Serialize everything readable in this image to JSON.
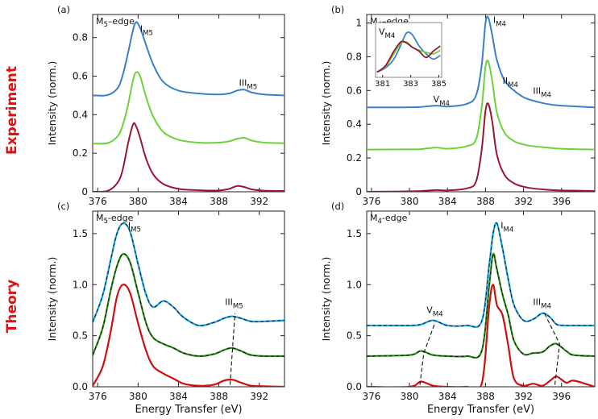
{
  "row_labels": {
    "experiment": "Experiment",
    "theory": "Theory"
  },
  "colors": {
    "blue": "#3a80c8",
    "green": "#6fd13a",
    "darkred": "#9a1532",
    "theory_blue": "#1aa3e8",
    "theory_green": "#2a8a1a",
    "theory_red": "#cc1010"
  },
  "chart_data": [
    {
      "id": "a",
      "type": "line",
      "panel_label": "(a)",
      "edge_label": "M5–edge",
      "ylabel": "Intensity (norm.)",
      "xlabel": "",
      "xlim": [
        375.5,
        394.5
      ],
      "ylim": [
        0,
        0.92
      ],
      "xticks": [
        376,
        380,
        384,
        388,
        392
      ],
      "yticks": [
        0,
        0.2,
        0.4,
        0.6,
        0.8
      ],
      "x": [
        375.5,
        377,
        378,
        378.5,
        379,
        379.5,
        379.8,
        380.2,
        380.8,
        381.5,
        382.5,
        384,
        386,
        388,
        389,
        389.8,
        390.5,
        391.3,
        392.5,
        394.5
      ],
      "series": [
        {
          "color": "blue",
          "values": [
            0.5,
            0.502,
            0.54,
            0.61,
            0.72,
            0.84,
            0.88,
            0.85,
            0.76,
            0.66,
            0.57,
            0.525,
            0.51,
            0.505,
            0.51,
            0.525,
            0.53,
            0.515,
            0.505,
            0.5
          ]
        },
        {
          "color": "green",
          "values": [
            0.25,
            0.253,
            0.29,
            0.35,
            0.45,
            0.58,
            0.62,
            0.6,
            0.49,
            0.39,
            0.31,
            0.27,
            0.255,
            0.255,
            0.262,
            0.275,
            0.28,
            0.265,
            0.255,
            0.252
          ]
        },
        {
          "color": "darkred",
          "values": [
            0.0,
            0.005,
            0.05,
            0.12,
            0.25,
            0.35,
            0.34,
            0.28,
            0.17,
            0.09,
            0.04,
            0.015,
            0.008,
            0.007,
            0.015,
            0.03,
            0.025,
            0.012,
            0.006,
            0.004
          ]
        }
      ],
      "annotations": [
        {
          "label": "I",
          "sub": "M5",
          "x": 380.2,
          "y": 0.83
        },
        {
          "label": "III",
          "sub": "M5",
          "x": 390.0,
          "y": 0.55
        }
      ]
    },
    {
      "id": "b",
      "type": "line",
      "panel_label": "(b)",
      "edge_label": "M4–edge",
      "ylabel": "Intensity (norm.)",
      "xlabel": "",
      "xlim": [
        375.5,
        399.5
      ],
      "ylim": [
        0,
        1.05
      ],
      "xticks": [
        376,
        380,
        384,
        388,
        392,
        396
      ],
      "yticks": [
        0,
        0.2,
        0.4,
        0.6,
        0.8,
        1
      ],
      "x": [
        375.5,
        379,
        381,
        382.8,
        384,
        386,
        387,
        387.6,
        388,
        388.3,
        388.7,
        389.2,
        390,
        391,
        392,
        393,
        394.5,
        396,
        399.5
      ],
      "series": [
        {
          "color": "blue",
          "values": [
            0.5,
            0.5,
            0.502,
            0.51,
            0.505,
            0.52,
            0.57,
            0.75,
            1.0,
            1.03,
            0.93,
            0.78,
            0.66,
            0.6,
            0.56,
            0.54,
            0.52,
            0.51,
            0.5
          ]
        },
        {
          "color": "green",
          "values": [
            0.25,
            0.251,
            0.252,
            0.262,
            0.255,
            0.27,
            0.31,
            0.5,
            0.74,
            0.77,
            0.66,
            0.47,
            0.35,
            0.3,
            0.28,
            0.27,
            0.262,
            0.255,
            0.25
          ]
        },
        {
          "color": "darkred",
          "values": [
            0.0,
            0.002,
            0.004,
            0.01,
            0.008,
            0.02,
            0.06,
            0.25,
            0.48,
            0.52,
            0.42,
            0.22,
            0.1,
            0.05,
            0.03,
            0.02,
            0.012,
            0.008,
            0.005
          ]
        }
      ],
      "annotations": [
        {
          "label": "I",
          "sub": "M4",
          "x": 388.8,
          "y": 1.0
        },
        {
          "label": "II",
          "sub": "M4",
          "x": 389.8,
          "y": 0.64
        },
        {
          "label": "III",
          "sub": "M4",
          "x": 393.0,
          "y": 0.58
        },
        {
          "label": "V",
          "sub": "M4",
          "x": 382.5,
          "y": 0.53
        }
      ],
      "inset": {
        "xlim": [
          380.5,
          385.2
        ],
        "ylim": [
          0,
          1.05
        ],
        "xticks": [
          381,
          383,
          385
        ],
        "label": "V",
        "sub": "M4",
        "x": [
          380.6,
          381.2,
          381.8,
          382.3,
          382.7,
          383.1,
          383.6,
          384.1,
          384.6,
          385.1
        ],
        "series": [
          {
            "color": "blue",
            "values": [
              0.1,
              0.18,
              0.35,
              0.62,
              0.85,
              0.82,
              0.6,
              0.45,
              0.35,
              0.42
            ]
          },
          {
            "color": "green",
            "values": [
              0.1,
              0.2,
              0.45,
              0.65,
              0.68,
              0.58,
              0.52,
              0.48,
              0.45,
              0.52
            ]
          },
          {
            "color": "darkred",
            "values": [
              0.1,
              0.22,
              0.5,
              0.68,
              0.66,
              0.58,
              0.5,
              0.38,
              0.5,
              0.6
            ]
          }
        ]
      }
    },
    {
      "id": "c",
      "type": "line",
      "panel_label": "(c)",
      "edge_label": "M5-edge",
      "ylabel": "Intensity (norm.)",
      "xlabel": "Energy Transfer (eV)",
      "xlim": [
        375.5,
        394.5
      ],
      "ylim": [
        0,
        1.72
      ],
      "xticks": [
        376,
        380,
        384,
        388,
        392
      ],
      "yticks": [
        0.0,
        0.5,
        1.0,
        1.5
      ],
      "x": [
        375.5,
        376.5,
        377.3,
        377.9,
        378.5,
        379.2,
        380.0,
        380.8,
        381.5,
        382.5,
        383.5,
        384.5,
        386,
        387.5,
        388.5,
        389.3,
        390.2,
        391.2,
        392.5,
        394.5
      ],
      "series": [
        {
          "color": "theory_blue",
          "dashed": true,
          "values": [
            0.63,
            0.9,
            1.25,
            1.5,
            1.6,
            1.52,
            1.2,
            0.9,
            0.78,
            0.84,
            0.78,
            0.68,
            0.6,
            0.63,
            0.67,
            0.69,
            0.67,
            0.64,
            0.64,
            0.65
          ]
        },
        {
          "color": "theory_green",
          "dashed": true,
          "values": [
            0.31,
            0.58,
            0.95,
            1.18,
            1.3,
            1.22,
            0.92,
            0.62,
            0.48,
            0.42,
            0.38,
            0.33,
            0.3,
            0.32,
            0.36,
            0.38,
            0.35,
            0.31,
            0.3,
            0.3
          ]
        },
        {
          "color": "theory_red",
          "dashed": false,
          "values": [
            0.01,
            0.2,
            0.55,
            0.88,
            1.0,
            0.92,
            0.62,
            0.35,
            0.2,
            0.13,
            0.08,
            0.03,
            0.01,
            0.02,
            0.06,
            0.07,
            0.04,
            0.01,
            0.005,
            0.0
          ]
        }
      ],
      "dashed_guides": [
        {
          "points": [
            [
              389.1,
              0.02
            ],
            [
              389.6,
              0.72
            ]
          ]
        }
      ],
      "annotations": [
        {
          "label": "I",
          "sub": "M5",
          "x": 379.0,
          "y": 1.55
        },
        {
          "label": "III",
          "sub": "M5",
          "x": 388.6,
          "y": 0.8
        }
      ]
    },
    {
      "id": "d",
      "type": "line",
      "panel_label": "(d)",
      "edge_label": "M4-edge",
      "ylabel": "Intensity (norm.)",
      "xlabel": "Energy Transfer (eV)",
      "xlim": [
        375.5,
        399.5
      ],
      "ylim": [
        0,
        1.72
      ],
      "xticks": [
        376,
        380,
        384,
        388,
        392,
        396
      ],
      "yticks": [
        0.0,
        0.5,
        1.0,
        1.5
      ],
      "x": [
        375.5,
        380,
        381.2,
        382.5,
        384,
        386,
        387.6,
        388.4,
        388.8,
        389.2,
        389.8,
        390.4,
        391,
        392,
        393,
        394,
        394.8,
        395.5,
        396.5,
        397.3,
        399.5
      ],
      "series": [
        {
          "color": "theory_blue",
          "dashed": true,
          "values": [
            0.6,
            0.6,
            0.61,
            0.65,
            0.6,
            0.6,
            0.64,
            1.2,
            1.5,
            1.6,
            1.35,
            1.05,
            0.8,
            0.65,
            0.66,
            0.72,
            0.68,
            0.61,
            0.6,
            0.6,
            0.6
          ]
        },
        {
          "color": "theory_green",
          "dashed": true,
          "values": [
            0.3,
            0.31,
            0.35,
            0.31,
            0.3,
            0.3,
            0.35,
            1.0,
            1.3,
            1.15,
            0.9,
            0.7,
            0.45,
            0.32,
            0.33,
            0.34,
            0.4,
            0.42,
            0.35,
            0.31,
            0.3
          ]
        },
        {
          "color": "theory_red",
          "dashed": false,
          "values": [
            0.0,
            0.0,
            0.05,
            0.01,
            0.0,
            0.0,
            0.03,
            0.8,
            1.0,
            0.8,
            0.7,
            0.4,
            0.08,
            0.01,
            0.03,
            0.01,
            0.06,
            0.1,
            0.04,
            0.06,
            0.0
          ]
        }
      ],
      "dashed_guides": [
        {
          "points": [
            [
              381.1,
              0.02
            ],
            [
              381.5,
              0.33
            ],
            [
              382.7,
              0.63
            ]
          ]
        },
        {
          "points": [
            [
              395.3,
              0.02
            ],
            [
              395.8,
              0.42
            ],
            [
              394.2,
              0.72
            ]
          ]
        }
      ],
      "annotations": [
        {
          "label": "I",
          "sub": "M4",
          "x": 389.6,
          "y": 1.55
        },
        {
          "label": "V",
          "sub": "M4",
          "x": 381.8,
          "y": 0.72
        },
        {
          "label": "III",
          "sub": "M4",
          "x": 393.0,
          "y": 0.8
        }
      ]
    }
  ]
}
